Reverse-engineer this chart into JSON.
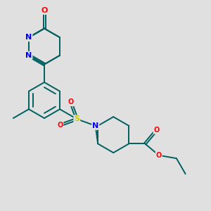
{
  "background_color": "#e0e0e0",
  "bond_color": "#006060",
  "atom_colors": {
    "O": "#ff0000",
    "N": "#0000ff",
    "S": "#cccc00",
    "C": "#006060"
  },
  "lw": 1.4,
  "figsize": [
    3.0,
    3.0
  ],
  "dpi": 100
}
